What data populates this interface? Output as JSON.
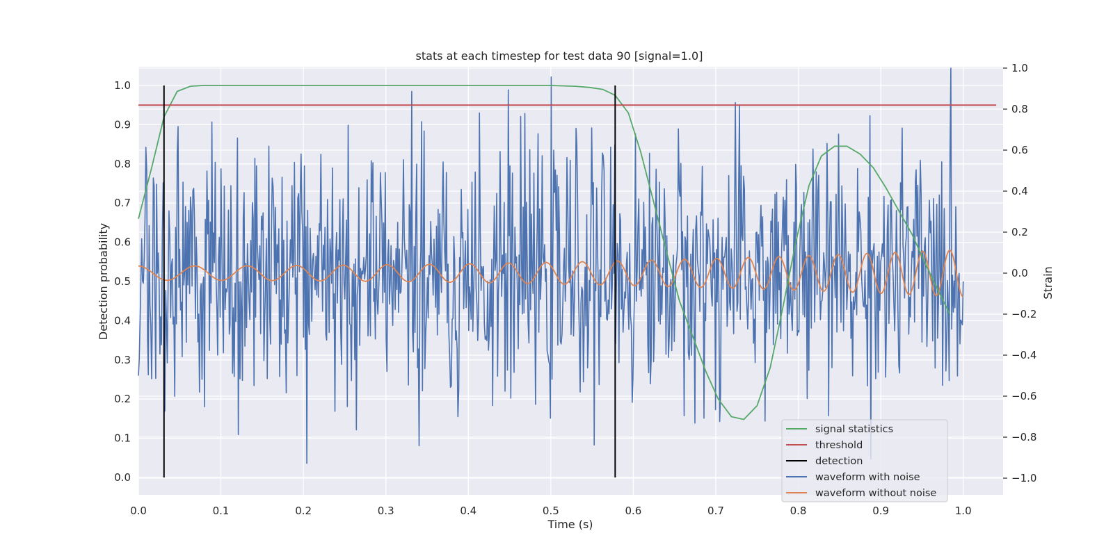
{
  "chart_data": {
    "type": "line",
    "title": "stats at each timestep for test data 90 [signal=1.0]",
    "xlabel": "Time (s)",
    "ylabel": "Detection probability",
    "y2label": "Strain",
    "xlim": [
      0.0,
      1.05
    ],
    "ylim": [
      -0.05,
      1.05
    ],
    "y2lim": [
      -1.09,
      1.0
    ],
    "xticks": [
      "0.0",
      "0.1",
      "0.2",
      "0.3",
      "0.4",
      "0.5",
      "0.6",
      "0.7",
      "0.8",
      "0.9",
      "1.0"
    ],
    "yticks": [
      "0.0",
      "0.1",
      "0.2",
      "0.3",
      "0.4",
      "0.5",
      "0.6",
      "0.7",
      "0.8",
      "0.9",
      "1.0"
    ],
    "y2ticks": [
      "−1.0",
      "−0.8",
      "−0.6",
      "−0.4",
      "−0.2",
      "0.0",
      "0.2",
      "0.4",
      "0.6",
      "0.8",
      "1.0"
    ],
    "grid": true,
    "legend_position": "lower-right",
    "colors": {
      "signal": "#55a868",
      "threshold": "#c44e52",
      "detection": "#000000",
      "noisy": "#4c72b0",
      "clean": "#dd8452",
      "plot_bg": "#eaeaf2",
      "grid": "#ffffff"
    },
    "series": [
      {
        "name": "signal statistics",
        "axis": "left",
        "x": [
          0.0,
          0.016,
          0.031,
          0.047,
          0.063,
          0.078,
          0.1,
          0.2,
          0.3,
          0.4,
          0.5,
          0.53,
          0.547,
          0.563,
          0.578,
          0.594,
          0.609,
          0.625,
          0.641,
          0.656,
          0.672,
          0.688,
          0.703,
          0.719,
          0.734,
          0.75,
          0.766,
          0.781,
          0.797,
          0.813,
          0.828,
          0.844,
          0.859,
          0.875,
          0.891,
          0.906,
          0.922,
          0.938,
          0.953,
          0.969,
          0.984
        ],
        "y": [
          0.66,
          0.79,
          0.92,
          0.985,
          0.998,
          1.0,
          1.0,
          1.0,
          1.0,
          1.0,
          1.0,
          0.998,
          0.995,
          0.99,
          0.975,
          0.93,
          0.83,
          0.7,
          0.57,
          0.45,
          0.36,
          0.27,
          0.2,
          0.155,
          0.148,
          0.183,
          0.28,
          0.43,
          0.6,
          0.745,
          0.82,
          0.845,
          0.845,
          0.825,
          0.79,
          0.74,
          0.68,
          0.62,
          0.55,
          0.48,
          0.415
        ]
      },
      {
        "name": "threshold",
        "axis": "left",
        "x": [
          0.0,
          1.04
        ],
        "y": [
          0.95,
          0.95
        ]
      },
      {
        "name": "detection",
        "axis": "left",
        "x": [
          0.031,
          0.578
        ],
        "y": [
          0.0,
          1.0
        ]
      },
      {
        "name": "waveform with noise",
        "axis": "right",
        "x_range": [
          0.0,
          1.0
        ],
        "points": 1000,
        "y_range_shown": [
          -1.0,
          1.0
        ]
      },
      {
        "name": "waveform without noise",
        "axis": "right",
        "x_range": [
          0.0,
          1.0
        ],
        "amplitude_start": 0.035,
        "amplitude_end": 0.115
      }
    ]
  }
}
